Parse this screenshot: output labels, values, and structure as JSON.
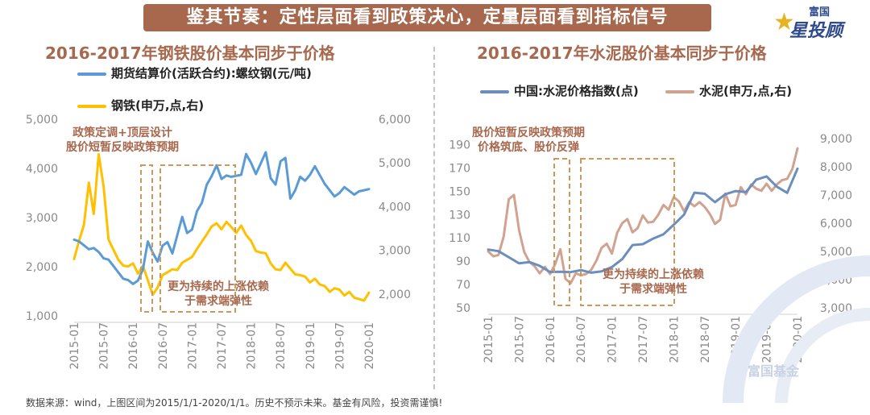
{
  "banner": {
    "text": "鉴其节奏：定性层面看到政策决心，定量层面看到指标信号"
  },
  "logo": {
    "top": "富国",
    "main": "星投顾",
    "icon": "star-icon"
  },
  "watermark": "富国基金",
  "source": "数据来源：wind，上图区间为2015/1/1-2020/1/1。历史不预示未来。基金有风险，投资需谨慎!",
  "colors": {
    "steel_price": "#5b9bd5",
    "steel_stock": "#ffc000",
    "cement_index": "#6c8ebf",
    "cement_stock": "#d2a290",
    "accent": "#a8684d",
    "box": "#c99a5b"
  },
  "chart_data": [
    {
      "type": "line",
      "title": "2016-2017年钢铁股价基本同步于价格",
      "x_ticks": [
        "2015-01",
        "2015-07",
        "2016-01",
        "2016-07",
        "2017-01",
        "2017-07",
        "2018-01",
        "2018-07",
        "2019-01",
        "2019-07",
        "2020-01"
      ],
      "y_left": {
        "ticks": [
          "1,000",
          "2,000",
          "3,000",
          "4,000",
          "5,000"
        ],
        "ylim": [
          1000,
          5000
        ]
      },
      "y_right": {
        "ticks": [
          "2,000",
          "3,000",
          "4,000",
          "5,000",
          "6,000"
        ],
        "ylim": [
          1500,
          6000
        ]
      },
      "series": [
        {
          "name": "期货结算价(活跃合约):螺纹钢(元/吨)",
          "axis": "left",
          "color": "#5b9bd5",
          "x": [
            0,
            1,
            2,
            3,
            4,
            5,
            6,
            7,
            8,
            9,
            10,
            11,
            12,
            13,
            14,
            15,
            16,
            17,
            18,
            19,
            20,
            21,
            22,
            23,
            24,
            25,
            26,
            27,
            28,
            29,
            30,
            31,
            32,
            33,
            34,
            35,
            36,
            37,
            38,
            39,
            40,
            41,
            42,
            43,
            44,
            45,
            46,
            47,
            48,
            49,
            50,
            51,
            52,
            53,
            54,
            55,
            56,
            57,
            58,
            59,
            60
          ],
          "values": [
            2550,
            2500,
            2450,
            2400,
            2350,
            2300,
            2200,
            2100,
            2000,
            1900,
            1800,
            1700,
            1650,
            1750,
            1900,
            2500,
            2300,
            2150,
            2400,
            2500,
            2300,
            2600,
            3000,
            2700,
            2800,
            3100,
            3300,
            3700,
            3800,
            4050,
            3800,
            3900,
            3800,
            3850,
            3900,
            4250,
            4100,
            3900,
            4150,
            4300,
            3800,
            3700,
            4100,
            4200,
            3400,
            3600,
            3800,
            3750,
            3900,
            4000,
            3850,
            3700,
            3600,
            3400,
            3500,
            3650,
            3500,
            3450,
            3550,
            3600,
            3550
          ]
        },
        {
          "name": "钢铁(申万,点,右)",
          "axis": "right",
          "color": "#ffc000",
          "x": [
            0,
            1,
            2,
            3,
            4,
            5,
            6,
            7,
            8,
            9,
            10,
            11,
            12,
            13,
            14,
            15,
            16,
            17,
            18,
            19,
            20,
            21,
            22,
            23,
            24,
            25,
            26,
            27,
            28,
            29,
            30,
            31,
            32,
            33,
            34,
            35,
            36,
            37,
            38,
            39,
            40,
            41,
            42,
            43,
            44,
            45,
            46,
            47,
            48,
            49,
            50,
            51,
            52,
            53,
            54,
            55,
            56,
            57,
            58,
            59,
            60
          ],
          "values": [
            2800,
            3200,
            3600,
            4600,
            3800,
            5200,
            4500,
            3200,
            3000,
            2800,
            2700,
            2600,
            2700,
            2500,
            2600,
            2300,
            2000,
            2200,
            2400,
            2500,
            2600,
            2500,
            2700,
            2800,
            2900,
            3000,
            3200,
            3400,
            3500,
            3600,
            3500,
            3700,
            3500,
            3400,
            3600,
            3300,
            3200,
            3000,
            3000,
            2900,
            2700,
            2600,
            2500,
            2700,
            2600,
            2500,
            2400,
            2400,
            2300,
            2300,
            2200,
            2200,
            2100,
            2100,
            2100,
            2000,
            2000,
            1900,
            1900,
            1900,
            2000
          ]
        }
      ]
    },
    {
      "type": "line",
      "title": "2016-2017年水泥股价基本同步于价格",
      "x_ticks": [
        "2015-01",
        "2015-07",
        "2016-01",
        "2016-07",
        "2017-01",
        "2017-07",
        "2018-01",
        "2018-07",
        "2019-01",
        "2019-07",
        "2020-01"
      ],
      "y_left": {
        "ticks": [
          "50",
          "70",
          "90",
          "110",
          "130",
          "150",
          "170",
          "190"
        ],
        "ylim": [
          50,
          200
        ]
      },
      "y_right": {
        "ticks": [
          "3,000",
          "4,000",
          "5,000",
          "6,000",
          "7,000",
          "8,000",
          "9,000"
        ],
        "ylim": [
          3000,
          9200
        ]
      },
      "series": [
        {
          "name": "中国:水泥价格指数(点)",
          "axis": "left",
          "color": "#6c8ebf",
          "x": [
            0,
            2,
            4,
            6,
            8,
            10,
            12,
            14,
            16,
            18,
            20,
            22,
            24,
            26,
            28,
            30,
            32,
            34,
            36,
            38,
            40,
            42,
            44,
            46,
            48,
            50,
            52,
            54,
            56,
            58,
            60
          ],
          "values": [
            100,
            98,
            94,
            90,
            88,
            86,
            82,
            79,
            80,
            83,
            82,
            80,
            85,
            93,
            102,
            104,
            110,
            115,
            120,
            130,
            150,
            146,
            140,
            148,
            152,
            148,
            160,
            164,
            152,
            148,
            170
          ]
        },
        {
          "name": "水泥(申万,点,右)",
          "axis": "right",
          "color": "#d2a290",
          "x": [
            0,
            1,
            2,
            3,
            4,
            5,
            6,
            7,
            8,
            9,
            10,
            11,
            12,
            13,
            14,
            15,
            16,
            17,
            18,
            19,
            20,
            21,
            22,
            23,
            24,
            25,
            26,
            27,
            28,
            29,
            30,
            31,
            32,
            33,
            34,
            35,
            36,
            37,
            38,
            39,
            40,
            41,
            42,
            43,
            44,
            45,
            46,
            47,
            48,
            49,
            50,
            51,
            52,
            53,
            54,
            55,
            56,
            57,
            58,
            59,
            60
          ],
          "values": [
            5000,
            4800,
            4900,
            5600,
            6800,
            7000,
            5800,
            4900,
            4600,
            4500,
            4300,
            4400,
            4200,
            4600,
            5000,
            4000,
            3900,
            4300,
            4100,
            4200,
            4400,
            4600,
            5100,
            5300,
            5000,
            5600,
            6000,
            6200,
            5600,
            5800,
            6300,
            6100,
            6000,
            6300,
            6700,
            6400,
            6900,
            6800,
            6500,
            6700,
            6600,
            6800,
            6500,
            6300,
            6000,
            6200,
            7000,
            6600,
            6700,
            7200,
            7000,
            7400,
            7300,
            7100,
            7400,
            7200,
            7300,
            7500,
            7600,
            8000,
            8600
          ]
        }
      ]
    }
  ],
  "annotations": {
    "left_top": [
      "政策定调+顶层设计",
      "股价短暂反映政策预期"
    ],
    "left_bottom": [
      "更为持续的上涨依赖",
      "于需求端弹性"
    ],
    "right_top": [
      "股价短暂反映政策预期",
      "价格筑底、股价反弹"
    ],
    "right_bottom": [
      "更为持续的上涨依赖",
      "于需求端弹性"
    ]
  }
}
